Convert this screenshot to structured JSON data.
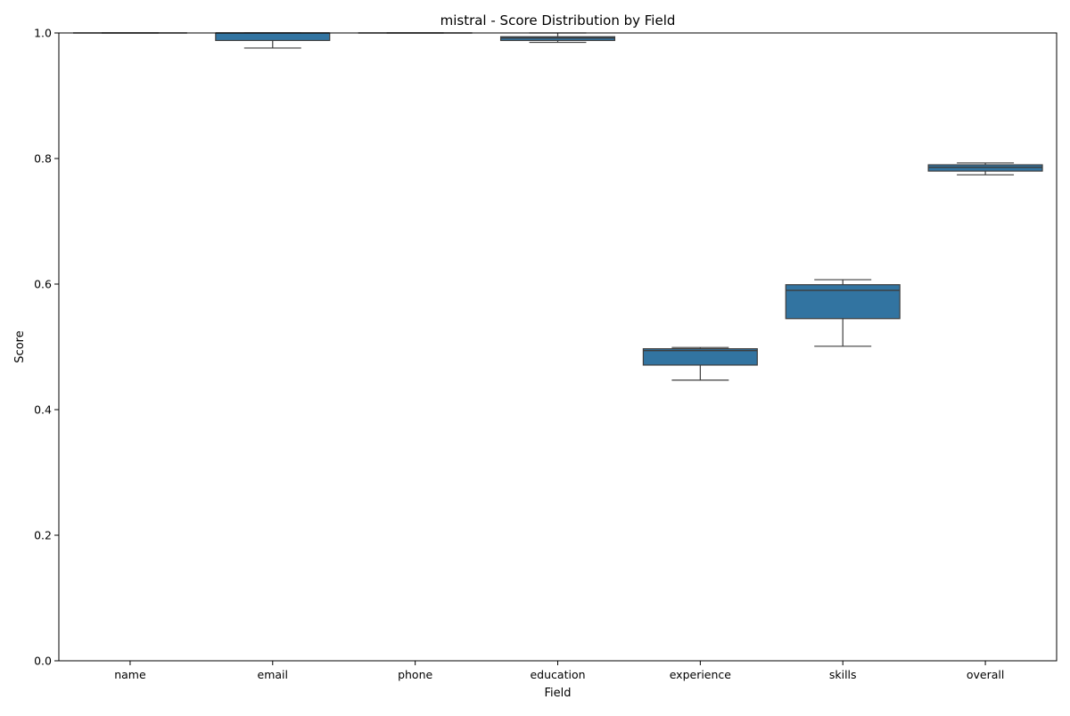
{
  "chart_data": {
    "type": "box",
    "title": "mistral - Score Distribution by Field",
    "xlabel": "Field",
    "ylabel": "Score",
    "ylim": [
      0.0,
      1.0
    ],
    "yticks": [
      0.0,
      0.2,
      0.4,
      0.6,
      0.8,
      1.0
    ],
    "ytick_labels": [
      "0.0",
      "0.2",
      "0.4",
      "0.6",
      "0.8",
      "1.0"
    ],
    "grid": false,
    "box_color": "#3274a1",
    "line_color": "#3d3d3d",
    "categories": [
      "name",
      "email",
      "phone",
      "education",
      "experience",
      "skills",
      "overall"
    ],
    "boxes": [
      {
        "field": "name",
        "min": 1.0,
        "q1": 1.0,
        "median": 1.0,
        "q3": 1.0,
        "max": 1.0
      },
      {
        "field": "email",
        "min": 0.976,
        "q1": 0.988,
        "median": 1.0,
        "q3": 1.0,
        "max": 1.0
      },
      {
        "field": "phone",
        "min": 1.0,
        "q1": 1.0,
        "median": 1.0,
        "q3": 1.0,
        "max": 1.0
      },
      {
        "field": "education",
        "min": 0.985,
        "q1": 0.988,
        "median": 0.992,
        "q3": 0.994,
        "max": 1.0
      },
      {
        "field": "experience",
        "min": 0.447,
        "q1": 0.471,
        "median": 0.494,
        "q3": 0.497,
        "max": 0.499
      },
      {
        "field": "skills",
        "min": 0.501,
        "q1": 0.545,
        "median": 0.59,
        "q3": 0.599,
        "max": 0.607
      },
      {
        "field": "overall",
        "min": 0.774,
        "q1": 0.78,
        "median": 0.786,
        "q3": 0.79,
        "max": 0.793
      }
    ]
  }
}
